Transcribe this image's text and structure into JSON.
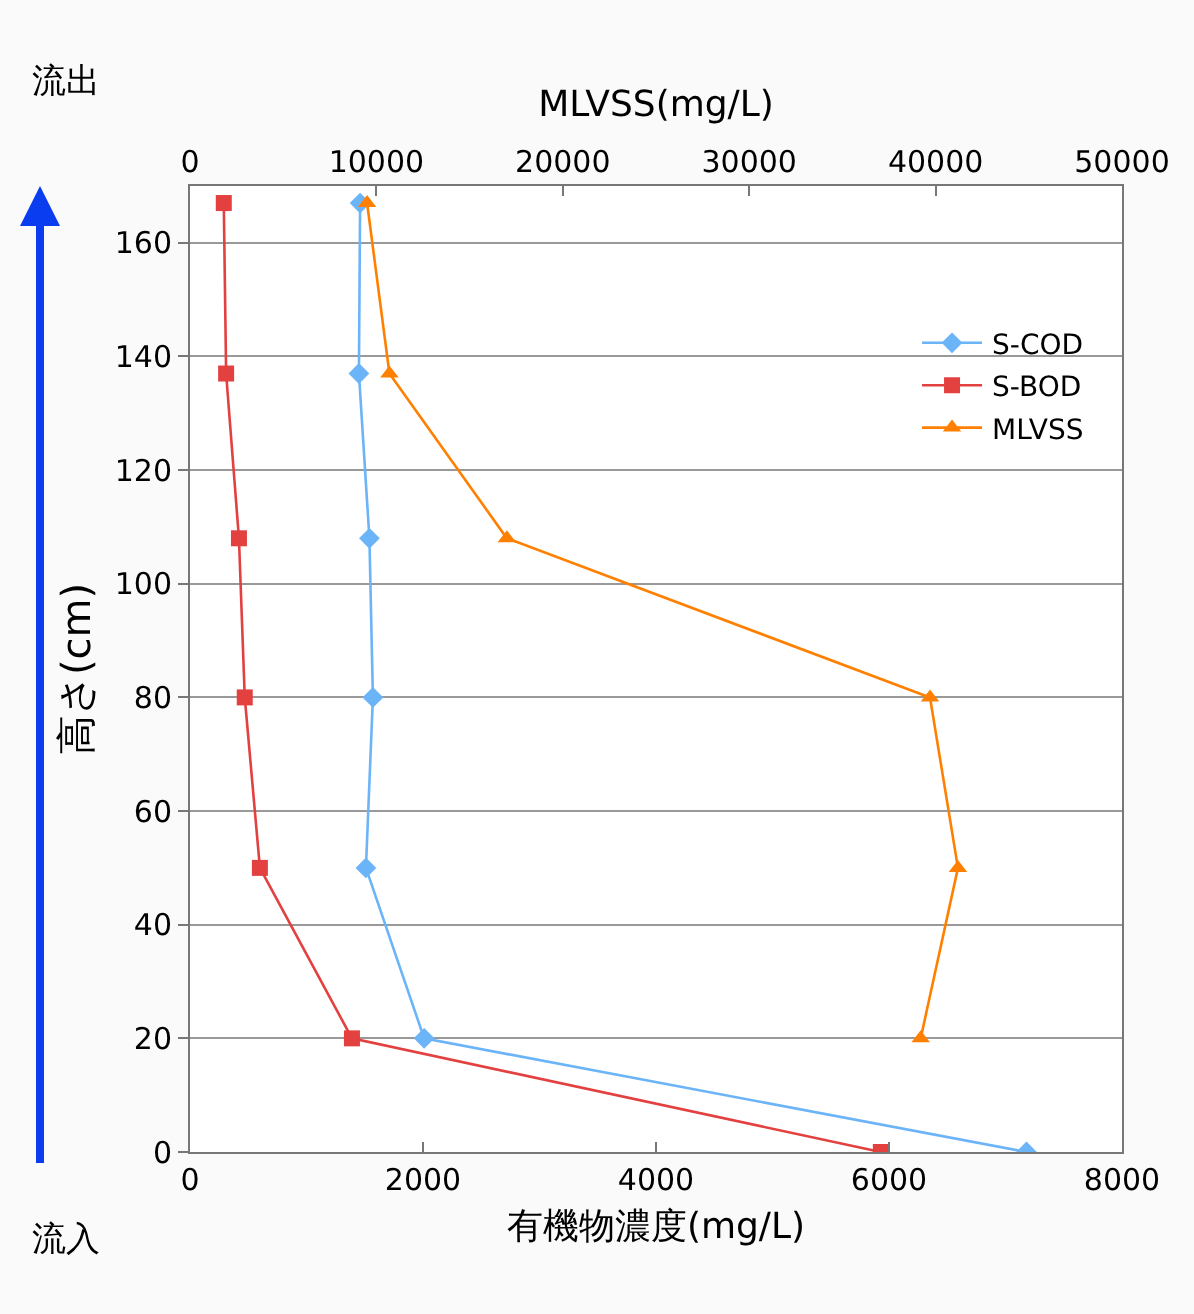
{
  "chart_data": {
    "type": "line",
    "xlabel": "有機物濃度(mg/L)",
    "x2label": "MLVSS(mg/L)",
    "ylabel": "高さ(cm)",
    "xlim": [
      0,
      8000
    ],
    "xticks": [
      0,
      2000,
      4000,
      6000,
      8000
    ],
    "x2lim": [
      0,
      50000
    ],
    "x2ticks": [
      0,
      10000,
      20000,
      30000,
      40000,
      50000
    ],
    "ylim": [
      0,
      170
    ],
    "yticks": [
      0,
      20,
      40,
      60,
      80,
      100,
      120,
      140,
      160
    ],
    "grid": "y",
    "legend": "top right",
    "annotations": [
      "流出",
      "流入"
    ],
    "series": [
      {
        "name": "S-COD",
        "color": "#6cb4f8",
        "marker": "diamond",
        "x": [
          7180,
          2010,
          1510,
          1570,
          1540,
          1450,
          1460
        ],
        "values": [
          0,
          20,
          50,
          80,
          108,
          137,
          167
        ]
      },
      {
        "name": "S-BOD",
        "color": "#e34040",
        "marker": "square",
        "x": [
          5930,
          1390,
          600,
          470,
          420,
          310,
          290
        ],
        "values": [
          0,
          20,
          50,
          80,
          108,
          137,
          167
        ]
      },
      {
        "name": "MLVSS",
        "color": "#ff8000",
        "marker": "triangle",
        "axis": "x2",
        "x": [
          39200,
          41200,
          39700,
          17000,
          10700,
          9500
        ],
        "values": [
          20,
          50,
          80,
          108,
          137,
          167
        ]
      }
    ]
  }
}
